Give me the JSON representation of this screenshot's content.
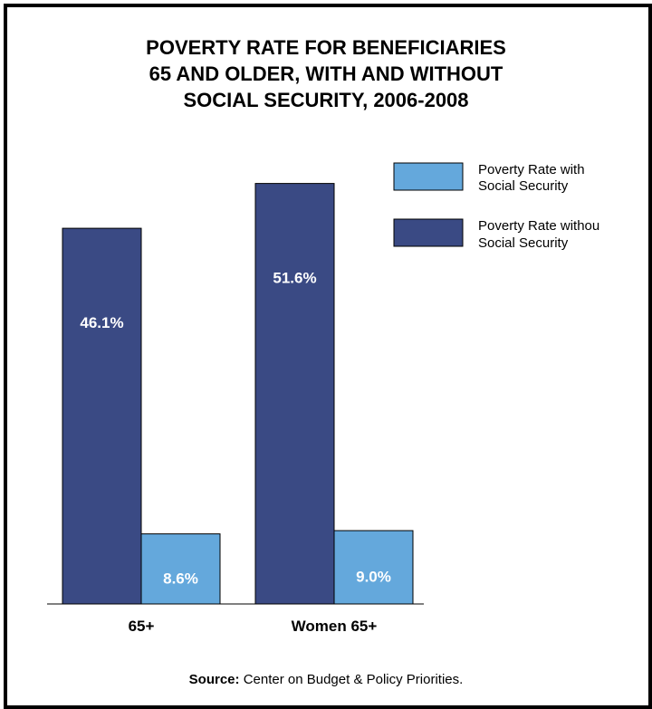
{
  "chart_data": {
    "type": "bar",
    "title": [
      "POVERTY RATE FOR BENEFICIARIES",
      "65 AND OLDER, WITH AND WITHOUT",
      "SOCIAL SECURITY, 2006-2008"
    ],
    "categories": [
      "65+",
      "Women 65+"
    ],
    "series": [
      {
        "name": "Poverty Rate without Social Security",
        "legend_lines": [
          "Poverty Rate withou",
          "Social Security"
        ],
        "values": [
          46.1,
          51.6
        ],
        "labels": [
          "46.1%",
          "51.6%"
        ],
        "color": "#3a4a84"
      },
      {
        "name": "Poverty Rate with Social Security",
        "legend_lines": [
          "Poverty Rate with",
          "Social Security"
        ],
        "values": [
          8.6,
          9.0
        ],
        "labels": [
          "8.6%",
          "9.0%"
        ],
        "color": "#64a8dc"
      }
    ],
    "xlabel": "",
    "ylabel": "",
    "ylim": [
      0,
      55
    ],
    "grid": false,
    "legend_position": "top-right"
  },
  "source": {
    "label": "Source:",
    "text": " Center on Budget & Policy Priorities."
  }
}
